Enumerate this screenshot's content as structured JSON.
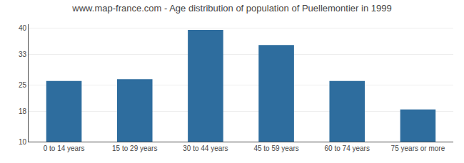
{
  "chart_data": {
    "type": "bar",
    "title": "www.map-france.com - Age distribution of population of Puellemontier in 1999",
    "categories": [
      "0 to 14 years",
      "15 to 29 years",
      "30 to 44 years",
      "45 to 59 years",
      "60 to 74 years",
      "75 years or more"
    ],
    "values": [
      26,
      26.5,
      39.5,
      35.5,
      26,
      18.5
    ],
    "color": "#2e6d9e",
    "ylim": [
      10,
      41
    ],
    "yticks": [
      10,
      18,
      25,
      33,
      40
    ],
    "grid": true
  }
}
